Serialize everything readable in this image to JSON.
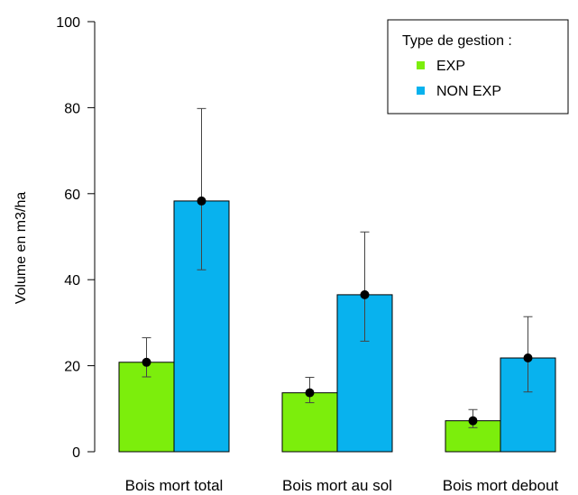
{
  "chart_data": {
    "type": "bar",
    "ylabel": "Volume en m3/ha",
    "xlabel": "",
    "ylim": [
      0,
      100
    ],
    "yticks": [
      0,
      20,
      40,
      60,
      80,
      100
    ],
    "categories": [
      "Bois mort total",
      "Bois mort au sol",
      "Bois mort debout"
    ],
    "series": [
      {
        "name": "EXP",
        "color": "#7CEE0C",
        "values": [
          20.8,
          13.7,
          7.2
        ],
        "error_low": [
          17.4,
          11.4,
          5.6
        ],
        "error_high": [
          26.5,
          17.3,
          9.8
        ]
      },
      {
        "name": "NON EXP",
        "color": "#08B2EE",
        "values": [
          58.3,
          36.5,
          21.8
        ],
        "error_low": [
          42.3,
          25.7,
          13.9
        ],
        "error_high": [
          79.8,
          51.1,
          31.4
        ]
      }
    ],
    "legend": {
      "title": "Type de gestion :",
      "position": "top-right"
    },
    "grid": false
  }
}
